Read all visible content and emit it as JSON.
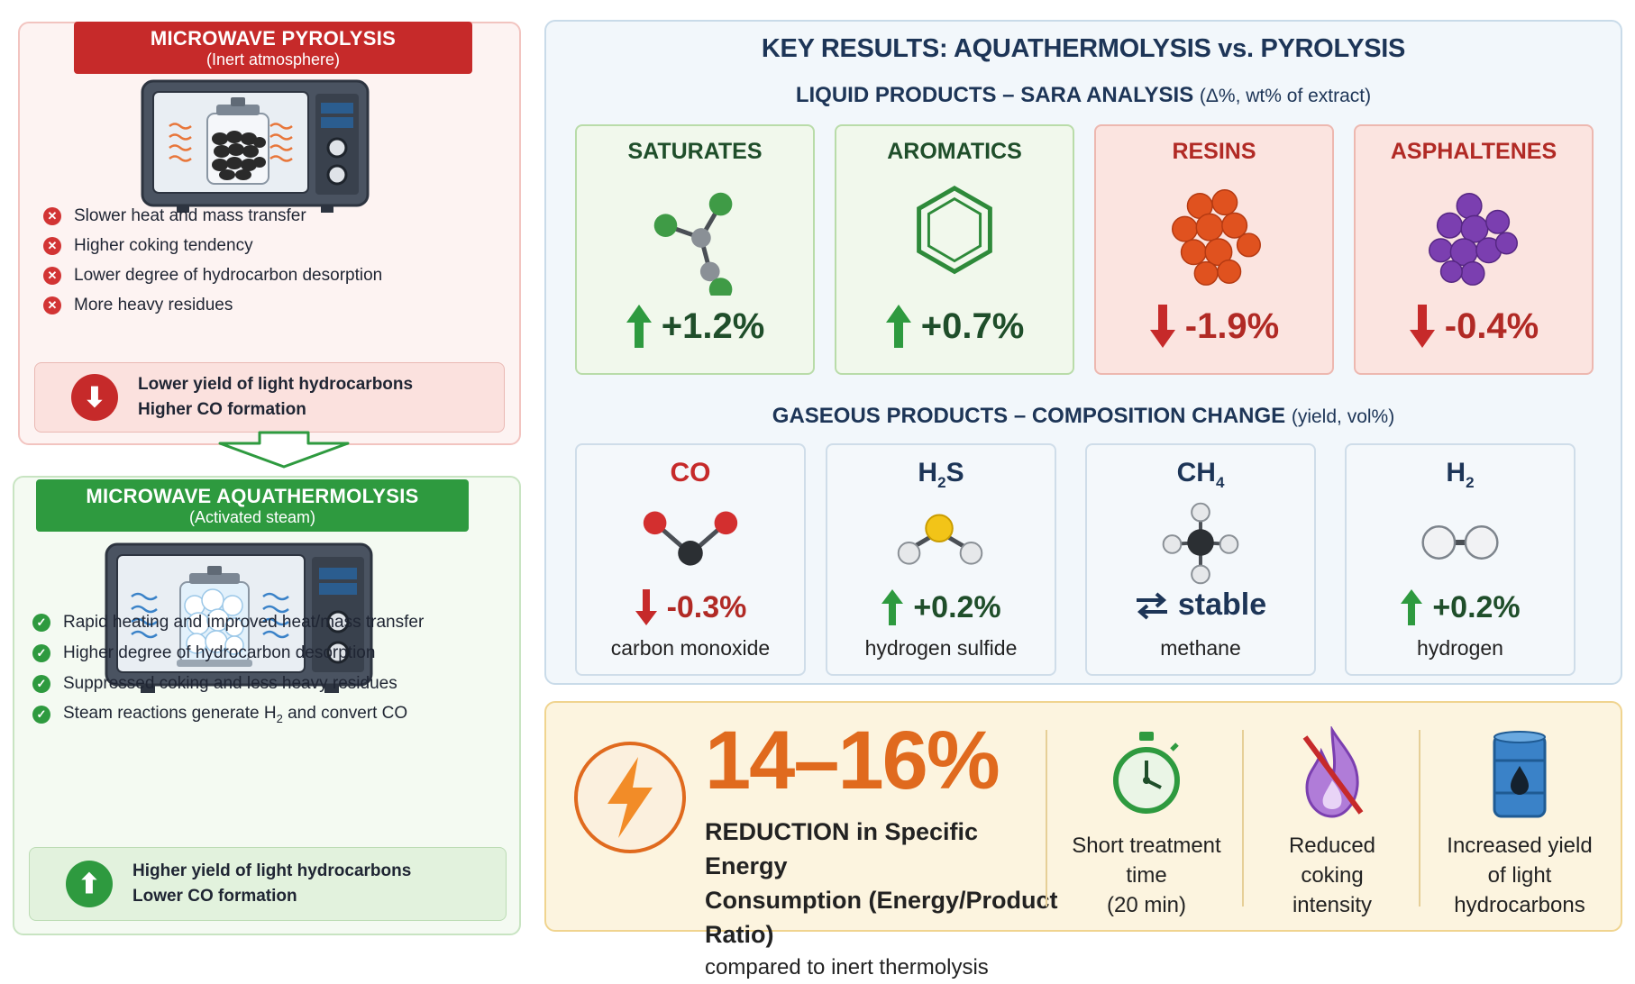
{
  "pyrolysis": {
    "title": "MICROWAVE PYROLYSIS",
    "subtitle": "(Inert atmosphere)",
    "points": [
      "Slower heat and mass transfer",
      "Higher coking tendency",
      "Lower degree of hydrocarbon desorption",
      "More heavy residues"
    ],
    "summary_line1": "Lower yield of light hydrocarbons",
    "summary_line2": "Higher CO formation"
  },
  "aquathermolysis": {
    "title": "MICROWAVE AQUATHERMOLYSIS",
    "subtitle": "(Activated steam)",
    "points": [
      "Rapid heating and improved heat/mass transfer",
      "Higher degree of hydrocarbon desorption",
      "Suppressed coking and less heavy residues"
    ],
    "point4_pre": "Steam reactions generate H",
    "point4_sub": "2",
    "point4_post": " and convert CO",
    "summary_line1": "Higher yield of light hydrocarbons",
    "summary_line2": "Lower CO formation"
  },
  "results": {
    "title": "KEY RESULTS: AQUATHERMOLYSIS vs. PYROLYSIS",
    "liquid_heading": "LIQUID PRODUCTS – SARA ANALYSIS",
    "liquid_note": "(Δ%, wt% of extract)",
    "liquid": [
      {
        "name": "SATURATES",
        "change": "+1.2%",
        "direction": "up",
        "icon": "alkane-molecule-icon"
      },
      {
        "name": "AROMATICS",
        "change": "+0.7%",
        "direction": "up",
        "icon": "benzene-ring-icon"
      },
      {
        "name": "RESINS",
        "change": "-1.9%",
        "direction": "down",
        "icon": "resin-cluster-icon"
      },
      {
        "name": "ASPHALTENES",
        "change": "-0.4%",
        "direction": "down",
        "icon": "asphaltene-cluster-icon"
      }
    ],
    "gas_heading": "GASEOUS PRODUCTS – COMPOSITION CHANGE",
    "gas_note": "(yield, vol%)",
    "gas": [
      {
        "name_main": "CO",
        "name_sub": "",
        "name_tail": "",
        "change": "-0.3%",
        "direction": "down",
        "label": "carbon monoxide",
        "icon": "co-molecule-icon"
      },
      {
        "name_main": "H",
        "name_sub": "2",
        "name_tail": "S",
        "change": "+0.2%",
        "direction": "up",
        "label": "hydrogen sulfide",
        "icon": "h2s-molecule-icon"
      },
      {
        "name_main": "CH",
        "name_sub": "4",
        "name_tail": "",
        "change": "stable",
        "direction": "stable",
        "label": "methane",
        "icon": "methane-molecule-icon"
      },
      {
        "name_main": "H",
        "name_sub": "2",
        "name_tail": "",
        "change": "+0.2%",
        "direction": "up",
        "label": "hydrogen",
        "icon": "hydrogen-molecule-icon"
      }
    ]
  },
  "energy": {
    "value": "14–16%",
    "line1": "REDUCTION in Specific Energy",
    "line2": "Consumption (Energy/Product Ratio)",
    "line3": "compared to inert thermolysis",
    "features": [
      {
        "lines": [
          "Short treatment",
          "time",
          "(20 min)"
        ],
        "icon": "stopwatch-icon"
      },
      {
        "lines": [
          "Reduced",
          "coking",
          "intensity"
        ],
        "icon": "no-flame-icon"
      },
      {
        "lines": [
          "Increased yield",
          "of light",
          "hydrocarbons"
        ],
        "icon": "oil-barrel-icon"
      }
    ]
  },
  "colors": {
    "red": "#c62a2a",
    "green": "#2e9a3f",
    "navy": "#1d3557",
    "orange": "#e06a1e"
  }
}
